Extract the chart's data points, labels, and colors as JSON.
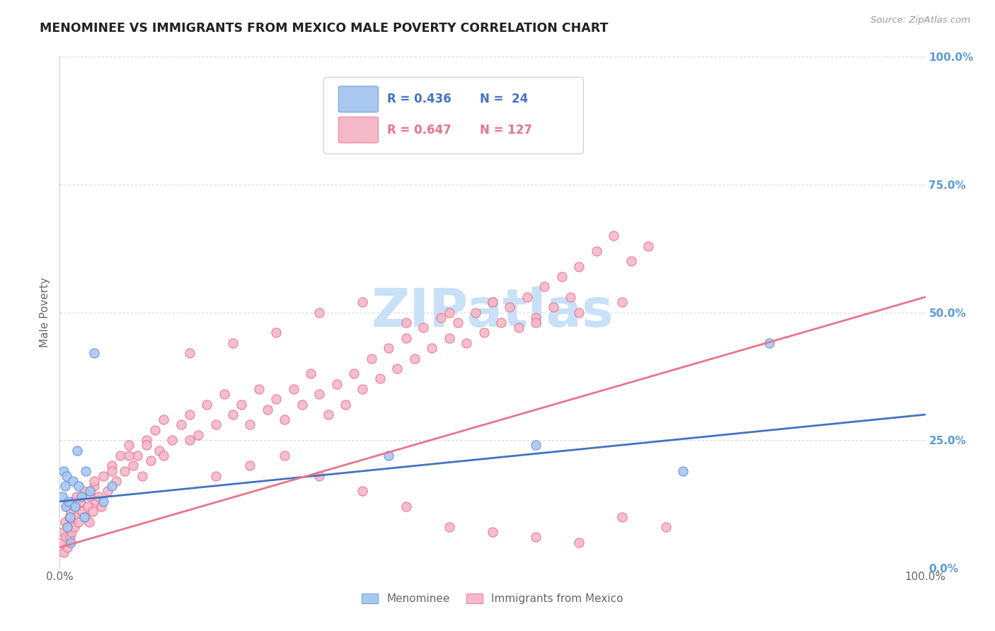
{
  "title": "MENOMINEE VS IMMIGRANTS FROM MEXICO MALE POVERTY CORRELATION CHART",
  "source": "Source: ZipAtlas.com",
  "ylabel": "Male Poverty",
  "xlim": [
    0,
    1
  ],
  "ylim": [
    0,
    1
  ],
  "menominee_color": "#A8C8F0",
  "mexico_color": "#F5B8C8",
  "menominee_edge_color": "#5B8DD9",
  "mexico_edge_color": "#E87090",
  "menominee_line_color": "#4472C4",
  "mexico_line_color": "#E8748A",
  "background_color": "#FFFFFF",
  "grid_color": "#CCCCCC",
  "right_tick_color": "#5B9BD5",
  "title_color": "#222222",
  "label_color": "#666666",
  "source_color": "#999999",
  "watermark_color": "#C8E0F8",
  "legend_R1": "R = 0.436",
  "legend_N1": "N =  24",
  "legend_R2": "R = 0.647",
  "legend_N2": "N = 127",
  "men_intercept": 0.13,
  "men_slope": 0.17,
  "mex_intercept": 0.04,
  "mex_slope": 0.49,
  "menominee_x": [
    0.003,
    0.005,
    0.006,
    0.007,
    0.008,
    0.009,
    0.01,
    0.012,
    0.013,
    0.015,
    0.018,
    0.02,
    0.022,
    0.025,
    0.028,
    0.03,
    0.035,
    0.04,
    0.05,
    0.06,
    0.38,
    0.55,
    0.72,
    0.82
  ],
  "menominee_y": [
    0.14,
    0.19,
    0.16,
    0.12,
    0.18,
    0.08,
    0.13,
    0.1,
    0.05,
    0.17,
    0.12,
    0.23,
    0.16,
    0.14,
    0.1,
    0.19,
    0.15,
    0.42,
    0.13,
    0.16,
    0.22,
    0.24,
    0.19,
    0.44
  ],
  "mexico_x": [
    0.003,
    0.004,
    0.005,
    0.006,
    0.007,
    0.008,
    0.009,
    0.01,
    0.011,
    0.012,
    0.013,
    0.014,
    0.015,
    0.016,
    0.017,
    0.018,
    0.019,
    0.02,
    0.022,
    0.024,
    0.026,
    0.028,
    0.03,
    0.032,
    0.034,
    0.036,
    0.038,
    0.04,
    0.042,
    0.045,
    0.048,
    0.05,
    0.055,
    0.06,
    0.065,
    0.07,
    0.075,
    0.08,
    0.085,
    0.09,
    0.095,
    0.1,
    0.105,
    0.11,
    0.115,
    0.12,
    0.13,
    0.14,
    0.15,
    0.16,
    0.17,
    0.18,
    0.19,
    0.2,
    0.21,
    0.22,
    0.23,
    0.24,
    0.25,
    0.26,
    0.27,
    0.28,
    0.29,
    0.3,
    0.31,
    0.32,
    0.33,
    0.34,
    0.35,
    0.36,
    0.37,
    0.38,
    0.39,
    0.4,
    0.41,
    0.42,
    0.43,
    0.44,
    0.45,
    0.46,
    0.47,
    0.48,
    0.49,
    0.5,
    0.51,
    0.52,
    0.53,
    0.54,
    0.55,
    0.56,
    0.57,
    0.58,
    0.59,
    0.6,
    0.62,
    0.64,
    0.66,
    0.68,
    0.04,
    0.06,
    0.08,
    0.1,
    0.12,
    0.15,
    0.18,
    0.22,
    0.26,
    0.3,
    0.35,
    0.4,
    0.45,
    0.5,
    0.55,
    0.6,
    0.65,
    0.7,
    0.15,
    0.2,
    0.25,
    0.3,
    0.35,
    0.4,
    0.45,
    0.5,
    0.55,
    0.6,
    0.65
  ],
  "mexico_y": [
    0.05,
    0.07,
    0.03,
    0.09,
    0.06,
    0.12,
    0.04,
    0.08,
    0.1,
    0.06,
    0.11,
    0.07,
    0.09,
    0.13,
    0.08,
    0.1,
    0.14,
    0.12,
    0.09,
    0.13,
    0.11,
    0.15,
    0.1,
    0.12,
    0.09,
    0.14,
    0.11,
    0.16,
    0.13,
    0.14,
    0.12,
    0.18,
    0.15,
    0.2,
    0.17,
    0.22,
    0.19,
    0.24,
    0.2,
    0.22,
    0.18,
    0.25,
    0.21,
    0.27,
    0.23,
    0.29,
    0.25,
    0.28,
    0.3,
    0.26,
    0.32,
    0.28,
    0.34,
    0.3,
    0.32,
    0.28,
    0.35,
    0.31,
    0.33,
    0.29,
    0.35,
    0.32,
    0.38,
    0.34,
    0.3,
    0.36,
    0.32,
    0.38,
    0.35,
    0.41,
    0.37,
    0.43,
    0.39,
    0.45,
    0.41,
    0.47,
    0.43,
    0.49,
    0.45,
    0.48,
    0.44,
    0.5,
    0.46,
    0.52,
    0.48,
    0.51,
    0.47,
    0.53,
    0.49,
    0.55,
    0.51,
    0.57,
    0.53,
    0.59,
    0.62,
    0.65,
    0.6,
    0.63,
    0.17,
    0.19,
    0.22,
    0.24,
    0.22,
    0.25,
    0.18,
    0.2,
    0.22,
    0.18,
    0.15,
    0.12,
    0.08,
    0.07,
    0.06,
    0.05,
    0.1,
    0.08,
    0.42,
    0.44,
    0.46,
    0.5,
    0.52,
    0.48,
    0.5,
    0.52,
    0.48,
    0.5,
    0.52
  ]
}
